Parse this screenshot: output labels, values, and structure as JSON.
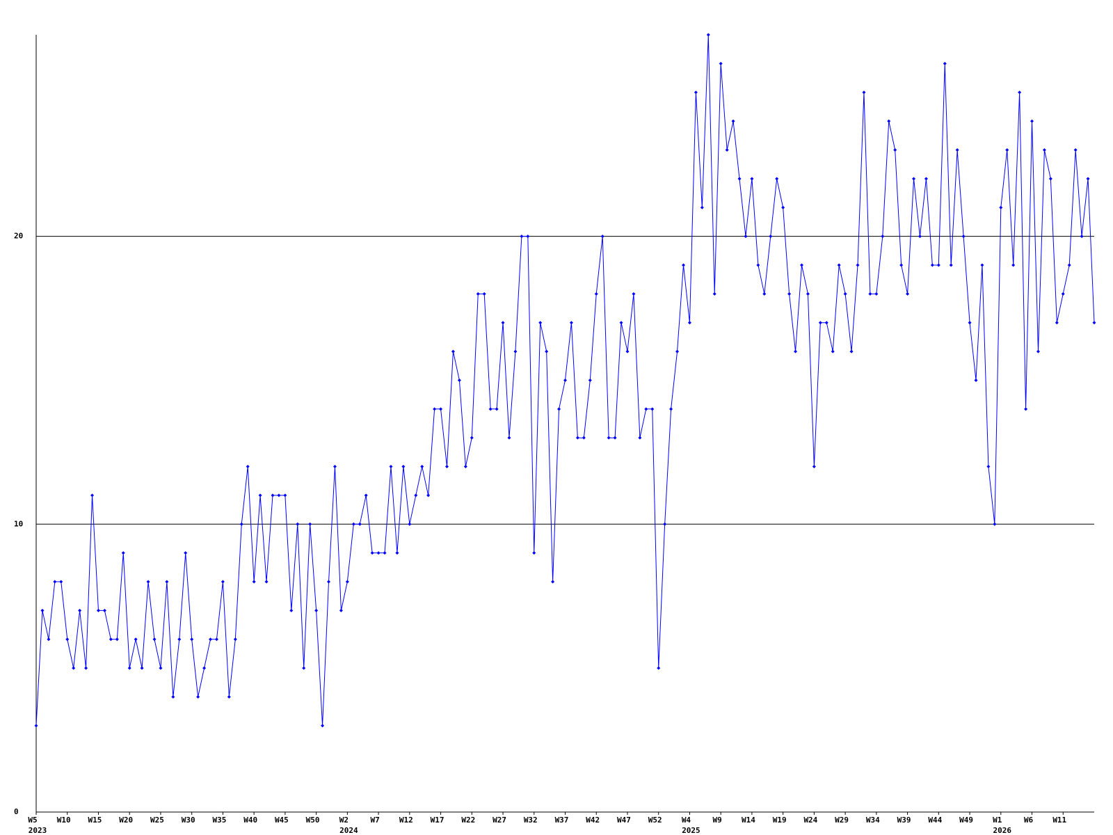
{
  "chart_data": {
    "type": "line",
    "categories": [
      "W5",
      null,
      null,
      null,
      null,
      "W10",
      null,
      null,
      null,
      null,
      "W15",
      null,
      null,
      null,
      null,
      "W20",
      null,
      null,
      null,
      null,
      "W25",
      null,
      null,
      null,
      null,
      "W30",
      null,
      null,
      null,
      null,
      "W35",
      null,
      null,
      null,
      null,
      "W40",
      null,
      null,
      null,
      null,
      "W45",
      null,
      null,
      null,
      null,
      "W50",
      null,
      null,
      null,
      null,
      "W2",
      null,
      null,
      null,
      null,
      "W7",
      null,
      null,
      null,
      null,
      "W12",
      null,
      null,
      null,
      null,
      "W17",
      null,
      null,
      null,
      null,
      "W22",
      null,
      null,
      null,
      null,
      "W27",
      null,
      null,
      null,
      null,
      "W32",
      null,
      null,
      null,
      null,
      "W37",
      null,
      null,
      null,
      null,
      "W42",
      null,
      null,
      null,
      null,
      "W47",
      null,
      null,
      null,
      null,
      "W52",
      null,
      null,
      null,
      null,
      "W4",
      null,
      null,
      null,
      null,
      "W9",
      null,
      null,
      null,
      null,
      "W14",
      null,
      null,
      null,
      null,
      "W19",
      null,
      null,
      null,
      null,
      "W24",
      null,
      null,
      null,
      null,
      "W29",
      null,
      null,
      null,
      null,
      "W34",
      null,
      null,
      null,
      null,
      "W39",
      null,
      null,
      null,
      null,
      "W44",
      null,
      null,
      null,
      null,
      "W49",
      null,
      null,
      null,
      null,
      "W1",
      null,
      null,
      null,
      null,
      "W6",
      null,
      null,
      null,
      null,
      "W11",
      null,
      null,
      null,
      null,
      null
    ],
    "x_group_labels": [
      {
        "index": 0,
        "label": "2023"
      },
      {
        "index": 50,
        "label": "2024"
      },
      {
        "index": 105,
        "label": "2025"
      },
      {
        "index": 155,
        "label": "2026"
      }
    ],
    "series": [
      {
        "color": "#0000ff",
        "values": [
          3,
          7,
          6,
          8,
          8,
          6,
          5,
          7,
          5,
          11,
          7,
          7,
          6,
          6,
          9,
          5,
          6,
          5,
          8,
          6,
          5,
          8,
          4,
          6,
          9,
          6,
          4,
          5,
          6,
          6,
          8,
          4,
          6,
          10,
          12,
          8,
          11,
          8,
          11,
          11,
          11,
          7,
          10,
          5,
          10,
          7,
          3,
          8,
          12,
          7,
          8,
          10,
          10,
          11,
          9,
          9,
          9,
          12,
          9,
          12,
          10,
          11,
          12,
          11,
          14,
          14,
          12,
          16,
          15,
          12,
          13,
          18,
          18,
          14,
          14,
          17,
          13,
          16,
          20,
          20,
          9,
          17,
          16,
          8,
          14,
          15,
          17,
          13,
          13,
          15,
          18,
          20,
          13,
          13,
          17,
          16,
          18,
          13,
          14,
          14,
          5,
          10,
          14,
          16,
          19,
          17,
          25,
          21,
          27,
          18,
          26,
          23,
          24,
          22,
          20,
          22,
          19,
          18,
          20,
          22,
          21,
          18,
          16,
          19,
          18,
          12,
          17,
          17,
          16,
          19,
          18,
          16,
          19,
          25,
          18,
          18,
          20,
          24,
          23,
          19,
          18,
          22,
          20,
          22,
          19,
          19,
          26,
          19,
          23,
          20,
          17,
          15,
          19,
          12,
          10,
          21,
          23,
          19,
          25,
          14,
          24,
          16,
          23,
          22,
          17,
          18,
          19,
          23,
          20,
          22,
          17
        ]
      }
    ],
    "ylim": [
      0,
      27
    ],
    "yticks": [
      0,
      10,
      20
    ],
    "grid": true
  }
}
